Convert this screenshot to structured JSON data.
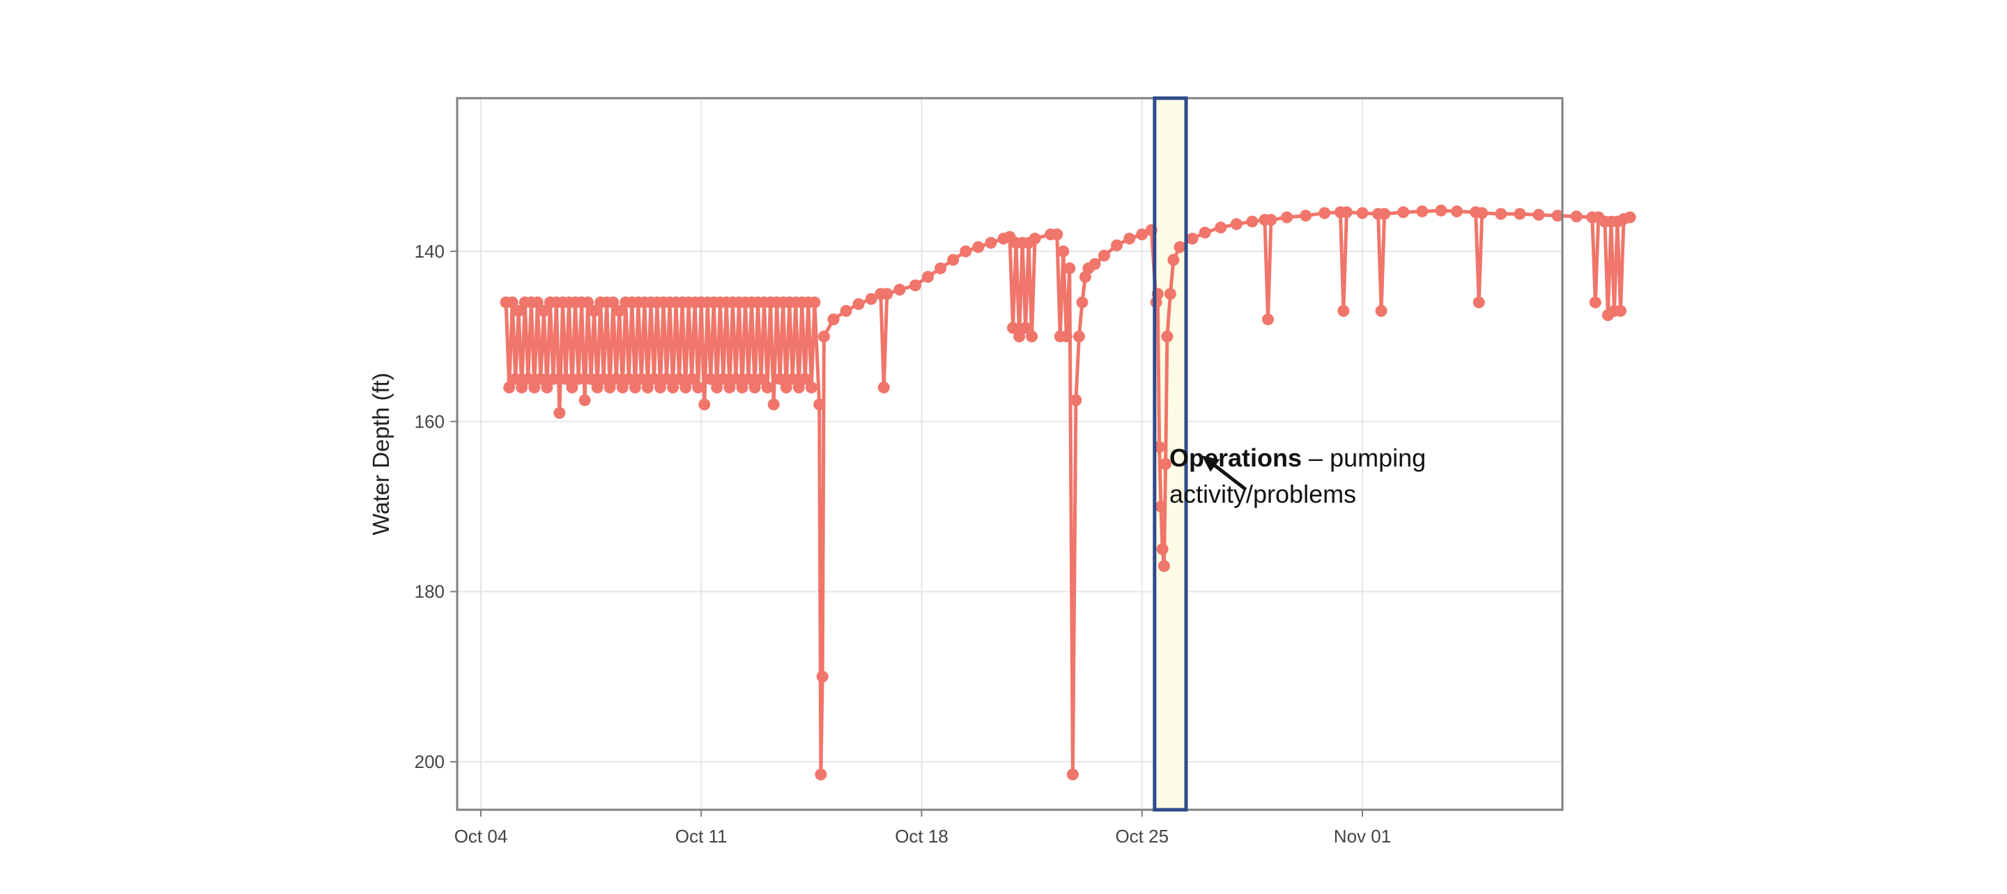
{
  "chart_data": {
    "type": "line",
    "title": "",
    "xlabel": "",
    "ylabel": "Water Depth (ft)",
    "y_reversed": true,
    "ylim": [
      205,
      118
    ],
    "x_ticks": [
      {
        "label": "Oct 04",
        "day": 0
      },
      {
        "label": "Oct 11",
        "day": 7
      },
      {
        "label": "Oct 18",
        "day": 14
      },
      {
        "label": "Oct 25",
        "day": 21
      },
      {
        "label": "Nov 01",
        "day": 28
      }
    ],
    "y_ticks": [
      140,
      160,
      180,
      200
    ],
    "grid": true,
    "series": [
      {
        "color": "#F0756A",
        "markers": true,
        "points": [
          [
            0.8,
            146
          ],
          [
            0.9,
            156
          ],
          [
            1.0,
            146
          ],
          [
            1.1,
            155
          ],
          [
            1.2,
            147
          ],
          [
            1.3,
            156
          ],
          [
            1.4,
            146
          ],
          [
            1.5,
            155
          ],
          [
            1.6,
            146
          ],
          [
            1.7,
            156
          ],
          [
            1.8,
            146
          ],
          [
            1.9,
            155
          ],
          [
            2.0,
            147
          ],
          [
            2.1,
            156
          ],
          [
            2.2,
            146
          ],
          [
            2.3,
            155
          ],
          [
            2.4,
            146
          ],
          [
            2.5,
            159
          ],
          [
            2.6,
            146
          ],
          [
            2.7,
            155
          ],
          [
            2.8,
            146
          ],
          [
            2.9,
            156
          ],
          [
            3.0,
            146
          ],
          [
            3.1,
            155
          ],
          [
            3.2,
            146
          ],
          [
            3.3,
            157.5
          ],
          [
            3.4,
            146
          ],
          [
            3.5,
            155
          ],
          [
            3.6,
            147
          ],
          [
            3.7,
            156
          ],
          [
            3.8,
            146
          ],
          [
            3.9,
            155
          ],
          [
            4.0,
            146
          ],
          [
            4.1,
            156
          ],
          [
            4.2,
            146
          ],
          [
            4.3,
            155
          ],
          [
            4.4,
            147
          ],
          [
            4.5,
            156
          ],
          [
            4.6,
            146
          ],
          [
            4.7,
            155
          ],
          [
            4.8,
            146
          ],
          [
            4.9,
            156
          ],
          [
            5.0,
            146
          ],
          [
            5.1,
            155
          ],
          [
            5.2,
            146
          ],
          [
            5.3,
            156
          ],
          [
            5.4,
            146
          ],
          [
            5.5,
            155
          ],
          [
            5.6,
            146
          ],
          [
            5.7,
            156
          ],
          [
            5.8,
            146
          ],
          [
            5.9,
            155
          ],
          [
            6.0,
            146
          ],
          [
            6.1,
            156
          ],
          [
            6.2,
            146
          ],
          [
            6.3,
            155
          ],
          [
            6.4,
            146
          ],
          [
            6.5,
            156
          ],
          [
            6.6,
            146
          ],
          [
            6.7,
            155
          ],
          [
            6.8,
            146
          ],
          [
            6.9,
            156
          ],
          [
            7.0,
            146
          ],
          [
            7.1,
            158
          ],
          [
            7.2,
            146
          ],
          [
            7.3,
            155
          ],
          [
            7.4,
            146
          ],
          [
            7.5,
            156
          ],
          [
            7.6,
            146
          ],
          [
            7.7,
            155
          ],
          [
            7.8,
            146
          ],
          [
            7.9,
            156
          ],
          [
            8.0,
            146
          ],
          [
            8.1,
            155
          ],
          [
            8.2,
            146
          ],
          [
            8.3,
            156
          ],
          [
            8.4,
            146
          ],
          [
            8.5,
            155
          ],
          [
            8.6,
            146
          ],
          [
            8.7,
            156
          ],
          [
            8.8,
            146
          ],
          [
            8.9,
            155
          ],
          [
            9.0,
            146
          ],
          [
            9.1,
            156
          ],
          [
            9.2,
            146
          ],
          [
            9.3,
            158
          ],
          [
            9.4,
            146
          ],
          [
            9.5,
            155
          ],
          [
            9.6,
            146
          ],
          [
            9.7,
            156
          ],
          [
            9.8,
            146
          ],
          [
            9.9,
            155
          ],
          [
            10.0,
            146
          ],
          [
            10.1,
            156
          ],
          [
            10.2,
            146
          ],
          [
            10.3,
            155
          ],
          [
            10.4,
            146
          ],
          [
            10.5,
            156
          ],
          [
            10.6,
            146
          ],
          [
            10.75,
            158
          ],
          [
            10.8,
            201.5
          ],
          [
            10.85,
            190
          ],
          [
            10.9,
            150
          ],
          [
            11.2,
            148
          ],
          [
            11.6,
            147
          ],
          [
            12.0,
            146.2
          ],
          [
            12.4,
            145.6
          ],
          [
            12.7,
            145
          ],
          [
            12.8,
            156
          ],
          [
            12.9,
            145
          ],
          [
            13.3,
            144.5
          ],
          [
            13.8,
            144
          ],
          [
            14.2,
            143
          ],
          [
            14.6,
            142
          ],
          [
            15.0,
            141
          ],
          [
            15.4,
            140
          ],
          [
            15.8,
            139.5
          ],
          [
            16.2,
            139
          ],
          [
            16.6,
            138.5
          ],
          [
            16.8,
            138.3
          ],
          [
            16.9,
            149
          ],
          [
            17.0,
            139
          ],
          [
            17.1,
            150
          ],
          [
            17.2,
            139
          ],
          [
            17.3,
            149
          ],
          [
            17.4,
            139
          ],
          [
            17.5,
            150
          ],
          [
            17.6,
            138.5
          ],
          [
            18.1,
            138
          ],
          [
            18.3,
            138
          ],
          [
            18.4,
            150
          ],
          [
            18.5,
            140
          ],
          [
            18.6,
            150
          ],
          [
            18.7,
            142
          ],
          [
            18.8,
            201.5
          ],
          [
            18.9,
            157.5
          ],
          [
            19.0,
            150
          ],
          [
            19.1,
            146
          ],
          [
            19.2,
            143
          ],
          [
            19.3,
            142
          ],
          [
            19.5,
            141.5
          ],
          [
            19.8,
            140.5
          ],
          [
            20.2,
            139.3
          ],
          [
            20.6,
            138.5
          ],
          [
            21.0,
            138
          ],
          [
            21.3,
            137.5
          ],
          [
            21.45,
            146
          ],
          [
            21.5,
            145
          ],
          [
            21.55,
            163
          ],
          [
            21.6,
            170
          ],
          [
            21.65,
            175
          ],
          [
            21.7,
            177
          ],
          [
            21.75,
            165
          ],
          [
            21.8,
            150
          ],
          [
            21.9,
            145
          ],
          [
            22.0,
            141
          ],
          [
            22.2,
            139.5
          ],
          [
            22.6,
            138.5
          ],
          [
            23.0,
            137.8
          ],
          [
            23.5,
            137.2
          ],
          [
            24.0,
            136.8
          ],
          [
            24.5,
            136.5
          ],
          [
            24.9,
            136.3
          ],
          [
            25.0,
            148
          ],
          [
            25.1,
            136.3
          ],
          [
            25.6,
            136
          ],
          [
            26.2,
            135.8
          ],
          [
            26.8,
            135.5
          ],
          [
            27.3,
            135.4
          ],
          [
            27.4,
            147
          ],
          [
            27.5,
            135.4
          ],
          [
            28.0,
            135.5
          ],
          [
            28.5,
            135.6
          ],
          [
            28.6,
            147
          ],
          [
            28.7,
            135.6
          ],
          [
            29.3,
            135.4
          ],
          [
            29.9,
            135.3
          ],
          [
            30.5,
            135.2
          ],
          [
            31.0,
            135.3
          ],
          [
            31.6,
            135.4
          ],
          [
            31.7,
            146
          ],
          [
            31.8,
            135.5
          ],
          [
            32.4,
            135.6
          ],
          [
            33.0,
            135.6
          ],
          [
            33.6,
            135.7
          ],
          [
            34.2,
            135.8
          ],
          [
            34.8,
            135.9
          ],
          [
            35.3,
            136
          ],
          [
            35.4,
            146
          ],
          [
            35.5,
            136
          ],
          [
            35.7,
            136.5
          ],
          [
            35.8,
            147.5
          ],
          [
            35.9,
            136.5
          ],
          [
            36.0,
            147
          ],
          [
            36.1,
            136.5
          ],
          [
            36.2,
            147
          ],
          [
            36.3,
            136.2
          ],
          [
            36.5,
            136
          ]
        ]
      }
    ],
    "highlight": {
      "x_start": 21.4,
      "x_end": 22.4,
      "fill": "#FDFCE6",
      "stroke": "#2E4A8C"
    },
    "annotation": {
      "bold": "Operations",
      "line1_rest": " – pumping",
      "line2": "activity/problems",
      "arrow_from": {
        "day": 24.3,
        "value": 168
      },
      "arrow_to": {
        "day": 22.9,
        "value": 164
      }
    }
  }
}
